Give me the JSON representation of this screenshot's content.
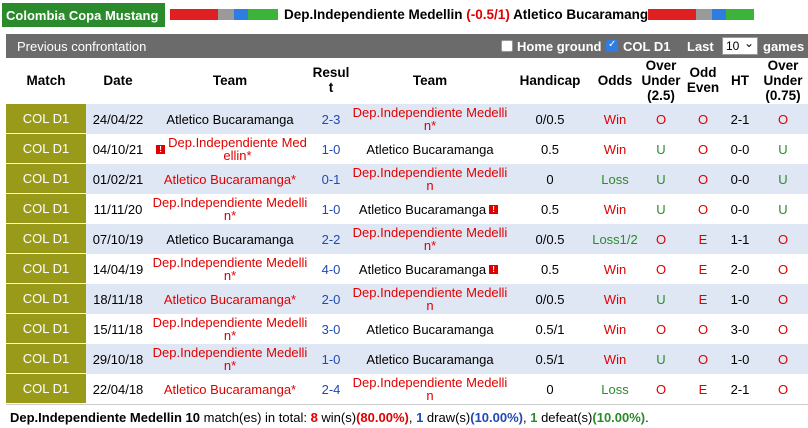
{
  "header": {
    "league": "Colombia Copa Mustang",
    "home_team": "Dep.Independiente Medellin",
    "handicap": "(-0.5/1)",
    "away_team": "Atletico Bucaramanga"
  },
  "section": {
    "title": "Previous confrontation",
    "home_ground_label": "Home ground",
    "col_label": "COL D1",
    "last_label": "Last",
    "last_value": "10",
    "games_label": "games"
  },
  "columns": {
    "match": "Match",
    "date": "Date",
    "team1": "Team",
    "result_1": "Resul",
    "result_2": "t",
    "team2": "Team",
    "handicap": "Handicap",
    "odds": "Odds",
    "over_under_1": "Over",
    "over_under_2": "Under",
    "over_under_3": "(2.5)",
    "odd_even_1": "Odd",
    "odd_even_2": "Even",
    "ht": "HT",
    "ou075_1": "Over",
    "ou075_2": "Under",
    "ou075_3": "(0.75)"
  },
  "rows": [
    {
      "league": "COL D1",
      "date": "24/04/22",
      "home": "Atletico Bucaramanga",
      "home_l2": "",
      "home_mark": "",
      "home_flag": "",
      "score": "2-3",
      "away": "Dep.Independiente Medelli",
      "away_l2": "n*",
      "away_flag": "",
      "hcap": "0/0.5",
      "odds": "Win",
      "ou": "O",
      "oe": "O",
      "ht": "2-1",
      "ou2": "O"
    },
    {
      "league": "COL D1",
      "date": "04/10/21",
      "home": "Dep.Independiente Med",
      "home_l2": "ellin*",
      "home_mark": "",
      "home_flag": "!",
      "score": "1-0",
      "away": "Atletico Bucaramanga",
      "away_l2": "",
      "away_flag": "",
      "hcap": "0.5",
      "odds": "Win",
      "ou": "U",
      "oe": "O",
      "ht": "0-0",
      "ou2": "U"
    },
    {
      "league": "COL D1",
      "date": "01/02/21",
      "home": "Atletico Bucaramanga*",
      "home_l2": "",
      "home_mark": "",
      "home_flag": "",
      "score": "0-1",
      "away": "Dep.Independiente Medelli",
      "away_l2": "n",
      "away_flag": "",
      "hcap": "0",
      "odds": "Loss",
      "ou": "U",
      "oe": "O",
      "ht": "0-0",
      "ou2": "U"
    },
    {
      "league": "COL D1",
      "date": "11/11/20",
      "home": "Dep.Independiente Medelli",
      "home_l2": "n*",
      "home_mark": "",
      "home_flag": "",
      "score": "1-0",
      "away": "Atletico Bucaramanga",
      "away_l2": "",
      "away_flag": "!",
      "hcap": "0.5",
      "odds": "Win",
      "ou": "U",
      "oe": "O",
      "ht": "0-0",
      "ou2": "U"
    },
    {
      "league": "COL D1",
      "date": "07/10/19",
      "home": "Atletico Bucaramanga",
      "home_l2": "",
      "home_mark": "",
      "home_flag": "",
      "score": "2-2",
      "away": "Dep.Independiente Medelli",
      "away_l2": "n*",
      "away_flag": "",
      "hcap": "0/0.5",
      "odds": "Loss1/2",
      "ou": "O",
      "oe": "E",
      "ht": "1-1",
      "ou2": "O"
    },
    {
      "league": "COL D1",
      "date": "14/04/19",
      "home": "Dep.Independiente Medelli",
      "home_l2": "n*",
      "home_mark": "",
      "home_flag": "",
      "score": "4-0",
      "away": "Atletico Bucaramanga",
      "away_l2": "",
      "away_flag": "!",
      "hcap": "0.5",
      "odds": "Win",
      "ou": "O",
      "oe": "E",
      "ht": "2-0",
      "ou2": "O"
    },
    {
      "league": "COL D1",
      "date": "18/11/18",
      "home": "Atletico Bucaramanga*",
      "home_l2": "",
      "home_mark": "",
      "home_flag": "",
      "score": "2-0",
      "away": "Dep.Independiente Medelli",
      "away_l2": "n",
      "away_flag": "",
      "hcap": "0/0.5",
      "odds": "Win",
      "ou": "U",
      "oe": "E",
      "ht": "1-0",
      "ou2": "O"
    },
    {
      "league": "COL D1",
      "date": "15/11/18",
      "home": "Dep.Independiente Medelli",
      "home_l2": "n*",
      "home_mark": "",
      "home_flag": "",
      "score": "3-0",
      "away": "Atletico Bucaramanga",
      "away_l2": "",
      "away_flag": "",
      "hcap": "0.5/1",
      "odds": "Win",
      "ou": "O",
      "oe": "O",
      "ht": "3-0",
      "ou2": "O"
    },
    {
      "league": "COL D1",
      "date": "29/10/18",
      "home": "Dep.Independiente Medelli",
      "home_l2": "n*",
      "home_mark": "",
      "home_flag": "",
      "score": "1-0",
      "away": "Atletico Bucaramanga",
      "away_l2": "",
      "away_flag": "",
      "hcap": "0.5/1",
      "odds": "Win",
      "ou": "U",
      "oe": "O",
      "ht": "1-0",
      "ou2": "O"
    },
    {
      "league": "COL D1",
      "date": "22/04/18",
      "home": "Atletico Bucaramanga*",
      "home_l2": "",
      "home_mark": "",
      "home_flag": "",
      "score": "2-4",
      "away": "Dep.Independiente Medelli",
      "away_l2": "n",
      "away_flag": "",
      "hcap": "0",
      "odds": "Loss",
      "ou": "O",
      "oe": "E",
      "ht": "2-1",
      "ou2": "O"
    }
  ],
  "footer": {
    "team": "Dep.Independiente Medellin",
    "count": "10",
    "text1": " match(es) in total: ",
    "wins": "8",
    "wins_label": " win(s)",
    "wins_pct": "(80.00%)",
    "sep1": ", ",
    "draws": "1",
    "draws_label": " draw(s)",
    "draws_pct": "(10.00%)",
    "sep2": ", ",
    "defeats": "1",
    "defeats_label": " defeat(s)",
    "defeats_pct": "(10.00%)",
    "end": "."
  },
  "colors": {
    "league_bg": "#2b8a2b",
    "subbar_bg": "#6b6b6b",
    "league_col_bg": "#9a9a1a",
    "row_alt": "#dfe7f5",
    "red": "#e00000",
    "blue": "#2149b4",
    "green": "#2b8a2b"
  }
}
